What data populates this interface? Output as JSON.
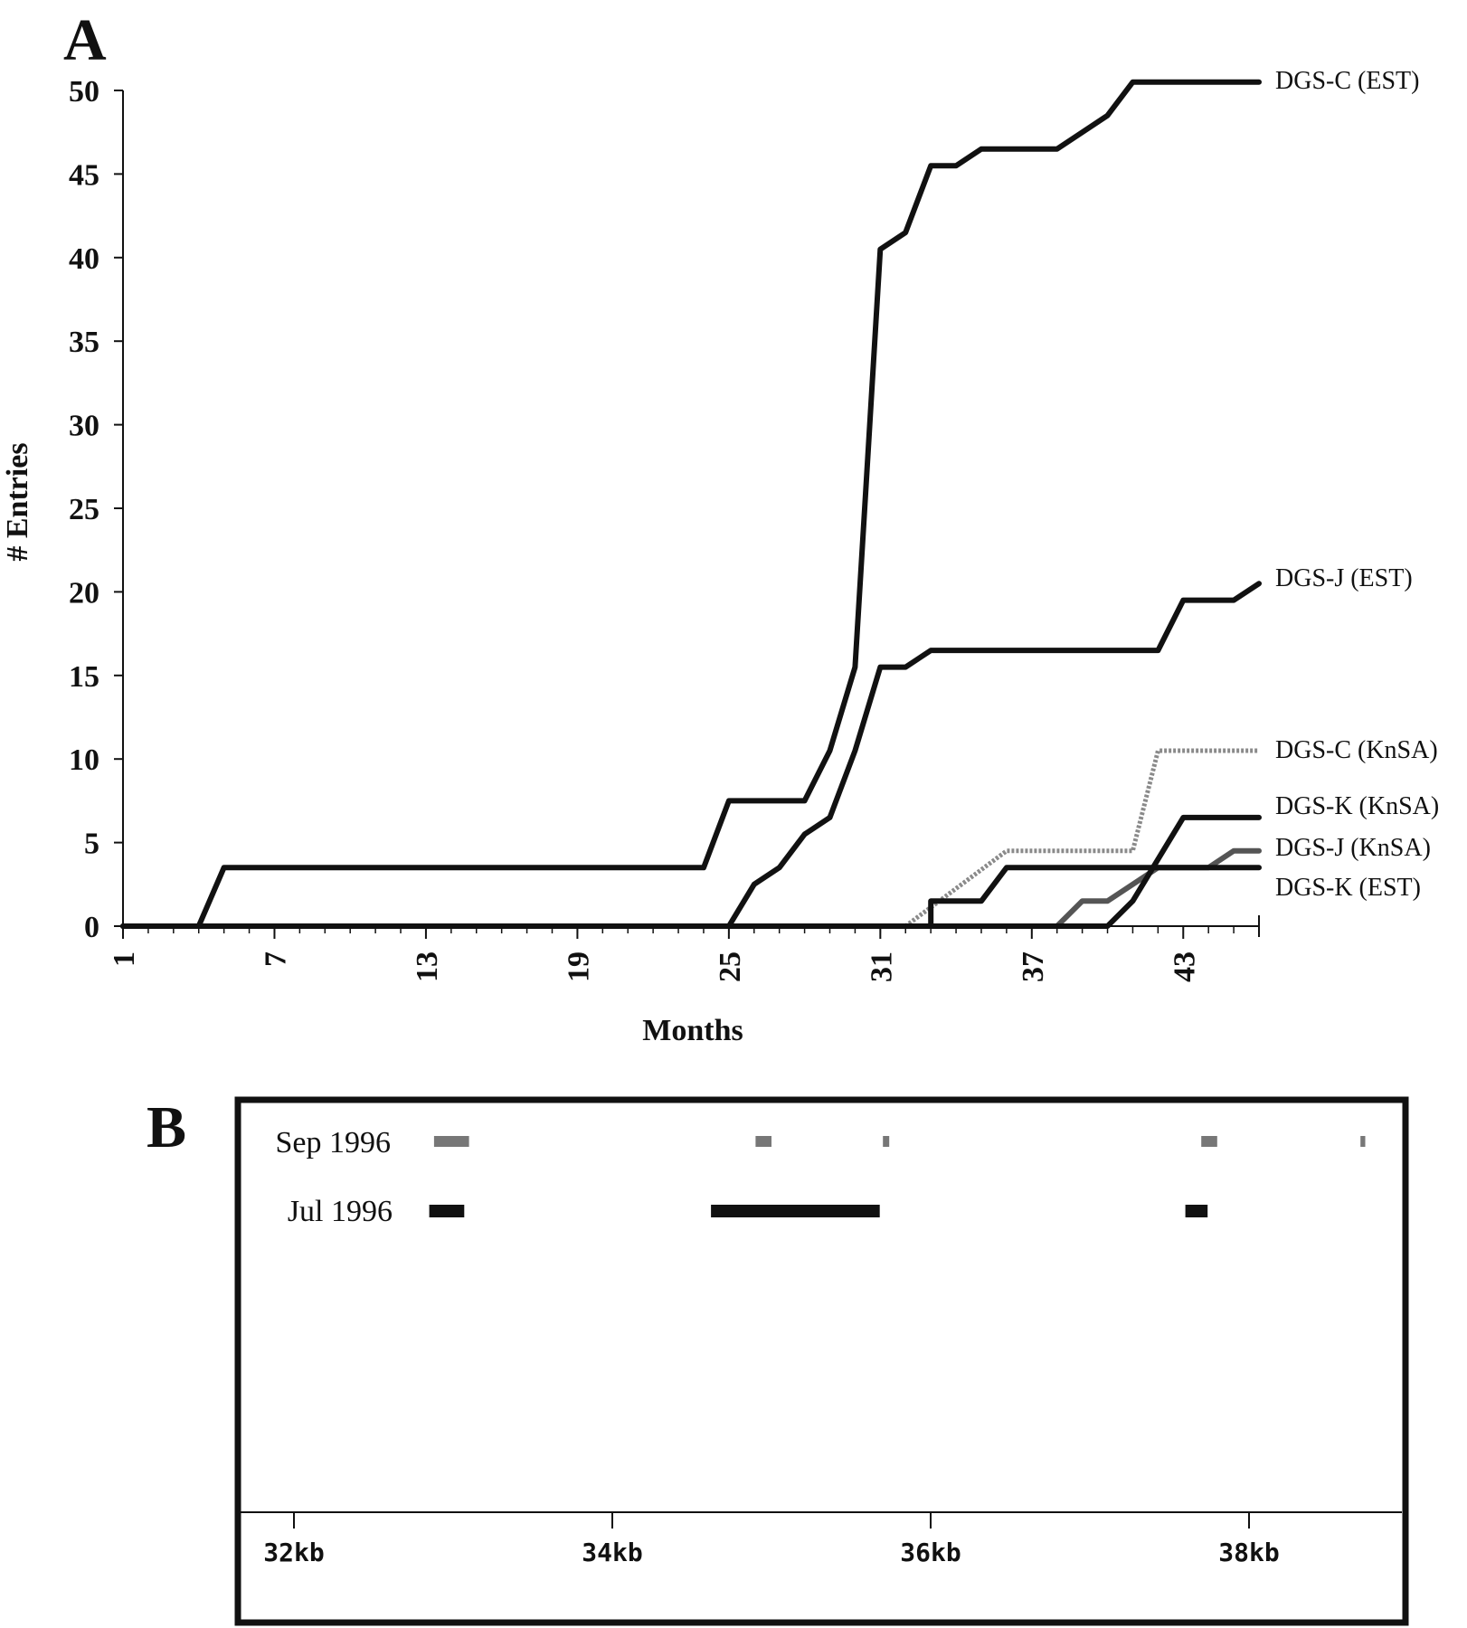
{
  "chart_data": [
    {
      "panel": "A",
      "type": "line",
      "xlabel": "Months",
      "ylabel": "# Entries",
      "xlim": [
        1,
        46
      ],
      "ylim": [
        0,
        50
      ],
      "xticks": [
        "1",
        "7",
        "13",
        "19",
        "25",
        "31",
        "37",
        "43"
      ],
      "yticks": [
        "0",
        "5",
        "10",
        "15",
        "20",
        "25",
        "30",
        "35",
        "40",
        "45",
        "50"
      ],
      "series": [
        {
          "name": "DGS-C (EST)",
          "color": "#111111",
          "style": "solid",
          "points": [
            [
              1,
              0
            ],
            [
              4,
              0
            ],
            [
              5,
              3.5
            ],
            [
              24,
              3.5
            ],
            [
              25,
              7.5
            ],
            [
              28,
              7.5
            ],
            [
              29,
              10.5
            ],
            [
              30,
              15.5
            ],
            [
              30.5,
              28
            ],
            [
              31,
              40.5
            ],
            [
              32,
              41.5
            ],
            [
              33,
              45.5
            ],
            [
              34,
              45.5
            ],
            [
              35,
              46.5
            ],
            [
              38,
              46.5
            ],
            [
              39,
              47.5
            ],
            [
              40,
              48.5
            ],
            [
              41,
              50.5
            ],
            [
              46,
              50.5
            ]
          ]
        },
        {
          "name": "DGS-J  (EST)",
          "color": "#111111",
          "style": "solid",
          "points": [
            [
              1,
              0
            ],
            [
              25,
              0
            ],
            [
              26,
              2.5
            ],
            [
              27,
              3.5
            ],
            [
              28,
              5.5
            ],
            [
              29,
              6.5
            ],
            [
              30,
              10.5
            ],
            [
              31,
              15.5
            ],
            [
              32,
              15.5
            ],
            [
              33,
              16.5
            ],
            [
              42,
              16.5
            ],
            [
              43,
              19.5
            ],
            [
              45,
              19.5
            ],
            [
              46,
              20.5
            ]
          ]
        },
        {
          "name": "DGS-C (KnSA)",
          "color": "#8a8a8a",
          "style": "dotted",
          "points": [
            [
              1,
              0
            ],
            [
              32,
              0
            ],
            [
              36,
              4.5
            ],
            [
              41,
              4.5
            ],
            [
              42,
              10.5
            ],
            [
              46,
              10.5
            ]
          ]
        },
        {
          "name": "DGS-K (KnSA)",
          "color": "#111111",
          "style": "solid",
          "points": [
            [
              1,
              0
            ],
            [
              40,
              0
            ],
            [
              41,
              1.5
            ],
            [
              43,
              6.5
            ],
            [
              46,
              6.5
            ]
          ]
        },
        {
          "name": "DGS-J  (KnSA)",
          "color": "#555555",
          "style": "solid",
          "points": [
            [
              1,
              0
            ],
            [
              38,
              0
            ],
            [
              39,
              1.5
            ],
            [
              40,
              1.5
            ],
            [
              42,
              3.5
            ],
            [
              44,
              3.5
            ],
            [
              45,
              4.5
            ],
            [
              46,
              4.5
            ]
          ]
        },
        {
          "name": "DGS-K (EST)",
          "color": "#111111",
          "style": "solid",
          "points": [
            [
              1,
              0
            ],
            [
              33,
              0
            ],
            [
              33,
              1.5
            ],
            [
              35,
              1.5
            ],
            [
              36,
              3.5
            ],
            [
              46,
              3.5
            ]
          ]
        }
      ]
    },
    {
      "panel": "B",
      "type": "timeline",
      "xlim": [
        31.6,
        38.9
      ],
      "xticks": [
        "32kb",
        "34kb",
        "36kb",
        "38kb"
      ],
      "tick_values": [
        32,
        34,
        36,
        38
      ],
      "rows": [
        {
          "name": "Sep 1996",
          "color": "#777777",
          "segments": [
            [
              32.88,
              33.1
            ],
            [
              34.9,
              35.0
            ],
            [
              35.7,
              35.74
            ],
            [
              37.7,
              37.8
            ],
            [
              38.7,
              38.73
            ]
          ]
        },
        {
          "name": "Jul 1996",
          "color": "#111111",
          "segments": [
            [
              32.85,
              33.07
            ],
            [
              34.62,
              35.68
            ],
            [
              37.6,
              37.74
            ]
          ]
        }
      ]
    }
  ]
}
